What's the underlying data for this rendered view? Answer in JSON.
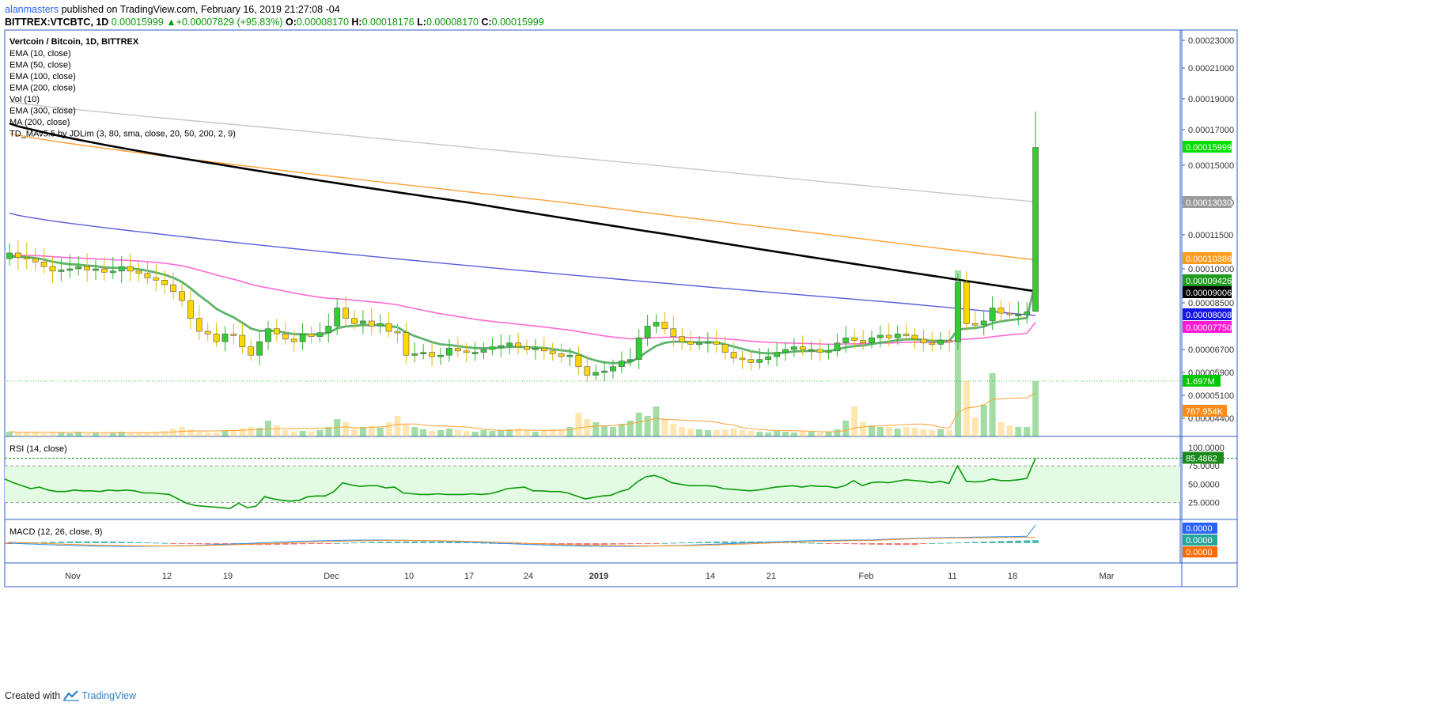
{
  "header": {
    "author": "alanmasters",
    "published": " published on TradingView.com, February 16, 2019 21:27:08 -04",
    "symbol_line": "BITTREX:VTCBTC, 1D",
    "last_price": "0.00015999",
    "change": "+0.00007829 (+95.83%)",
    "o_label": "O:",
    "o_value": "0.00008170",
    "h_label": "H:",
    "h_value": "0.00018176",
    "l_label": "L:",
    "l_value": "0.00008170",
    "c_label": "C:",
    "c_value": "0.00015999"
  },
  "footer": {
    "created_with": "Created with",
    "brand": "TradingView"
  },
  "colors": {
    "up": "#32cd32",
    "down": "#ffd700",
    "ema10": "#5fb36c",
    "ema50": "#ff6ad5",
    "ema100": "#5b5bdd",
    "ema200": "#000000",
    "ema300": "#ffa033",
    "ma200": "#c8c8c8",
    "rsi": "#0a9a0a",
    "macd": "#1e90ff",
    "signal": "#ff8c1a",
    "border": "#2f5fc8"
  },
  "chart_data": [
    {
      "type": "candlestick",
      "title": "Vertcoin / Bitcoin, 1D, BITTREX",
      "legend": [
        "EMA (10, close)",
        "EMA (50, close)",
        "EMA (100, close)",
        "EMA (200, close)",
        "Vol (10)",
        "EMA (300, close)",
        "MA (200, close)",
        "TD_MAv5.5 by JDLim (3, 80, sma, close, 20, 50, 200, 2, 9)"
      ],
      "y_ticks": [
        "0.00023000",
        "0.00021000",
        "0.00019000",
        "0.00017000",
        "0.00015000",
        "0.00013000",
        "0.00011500",
        "0.00010000",
        "0.00008500",
        "0.00006700",
        "0.00005900",
        "0.00005100",
        "0.00004400"
      ],
      "x_ticks": [
        "Nov",
        "12",
        "19",
        "Dec",
        "10",
        "17",
        "24",
        "2019",
        "14",
        "21",
        "Feb",
        "11",
        "18",
        "Mar"
      ],
      "price_labels": [
        {
          "value": "0.00015999",
          "color": "#00e000"
        },
        {
          "value": "0.00013030",
          "color": "#9c9c9c"
        },
        {
          "value": "0.00010386",
          "color": "#ff9a1a"
        },
        {
          "value": "0.00009426",
          "color": "#1f9a1f"
        },
        {
          "value": "0.00009006",
          "color": "#000000"
        },
        {
          "value": "0.00008008",
          "color": "#1515e6"
        },
        {
          "value": "0.00007750",
          "color": "#ff19d1"
        },
        {
          "value": "1.697M",
          "color": "#00c800"
        },
        {
          "value": "767.954K",
          "color": "#ff8c1a"
        }
      ],
      "candles_close": [
        0.000107,
        0.000105,
        0.0001045,
        0.000103,
        0.000101,
        9.9e-05,
        9.95e-05,
        0.0001,
        0.000101,
        9.95e-05,
        0.0001,
        9.85e-05,
        9.9e-05,
        0.000101,
        9.9e-05,
        9.8e-05,
        9.6e-05,
        9.5e-05,
        9.3e-05,
        9e-05,
        8.6e-05,
        7.9e-05,
        7.4e-05,
        7.3e-05,
        7e-05,
        7.3e-05,
        7.25e-05,
        6.8e-05,
        6.5e-05,
        7e-05,
        7.5e-05,
        7.3e-05,
        7.1e-05,
        7e-05,
        7.3e-05,
        7.2e-05,
        7.35e-05,
        7.6e-05,
        8.3e-05,
        7.9e-05,
        7.7e-05,
        7.8e-05,
        7.6e-05,
        7.7e-05,
        7.4e-05,
        7.35e-05,
        6.5e-05,
        6.55e-05,
        6.6e-05,
        6.45e-05,
        6.5e-05,
        6.75e-05,
        6.65e-05,
        6.6e-05,
        6.6e-05,
        6.7e-05,
        6.8e-05,
        6.85e-05,
        6.95e-05,
        6.8e-05,
        6.7e-05,
        6.75e-05,
        6.65e-05,
        6.55e-05,
        6.45e-05,
        6.5e-05,
        6.1e-05,
        5.8e-05,
        5.9e-05,
        5.95e-05,
        6.1e-05,
        6.3e-05,
        6.35e-05,
        7.15e-05,
        7.6e-05,
        7.75e-05,
        7.5e-05,
        7.2e-05,
        7e-05,
        6.9e-05,
        6.95e-05,
        7e-05,
        6.9e-05,
        6.6e-05,
        6.4e-05,
        6.35e-05,
        6.25e-05,
        6.35e-05,
        6.45e-05,
        6.6e-05,
        6.7e-05,
        6.8e-05,
        6.7e-05,
        6.7e-05,
        6.6e-05,
        6.65e-05,
        6.95e-05,
        7.15e-05,
        7.05e-05,
        6.95e-05,
        7.15e-05,
        7.25e-05,
        7.15e-05,
        7.3e-05,
        7.25e-05,
        7.1e-05,
        6.95e-05,
        6.9e-05,
        7.05e-05,
        7e-05,
        9.4e-05,
        7.7e-05,
        7.65e-05,
        7.8e-05,
        8.3e-05,
        8.1e-05,
        8.05e-05,
        8.05e-05,
        8.15e-05,
        0.00015999
      ],
      "volume_ma_label": "767.954K",
      "volume_last": "1.697M"
    },
    {
      "type": "line",
      "title": "RSI (14, close)",
      "y_ticks": [
        "100.0000",
        "75.0000",
        "50.0000",
        "25.0000"
      ],
      "last_label": "85.4862",
      "values": [
        57,
        52,
        48,
        44,
        46,
        42,
        40,
        40,
        42,
        41,
        41,
        40,
        42,
        41,
        42,
        41,
        38,
        38,
        37,
        36,
        30,
        24,
        21,
        20,
        19,
        18,
        17,
        24,
        18,
        20,
        33,
        30,
        28,
        27,
        28,
        33,
        34,
        34,
        40,
        52,
        49,
        47,
        48,
        48,
        45,
        46,
        38,
        37,
        36,
        36,
        37,
        36,
        36,
        36,
        37,
        36,
        37,
        40,
        44,
        45,
        46,
        41,
        41,
        40,
        40,
        38,
        34,
        30,
        32,
        34,
        35,
        40,
        43,
        53,
        60,
        62,
        58,
        52,
        50,
        48,
        48,
        48,
        47,
        44,
        43,
        42,
        41,
        42,
        44,
        46,
        47,
        48,
        46,
        48,
        47,
        47,
        45,
        48,
        55,
        48,
        52,
        53,
        52,
        54,
        56,
        55,
        54,
        52,
        54,
        51,
        75,
        54,
        53,
        54,
        57,
        55,
        55,
        56,
        58,
        85.4862
      ],
      "range": [
        0,
        100
      ]
    },
    {
      "type": "line",
      "title": "MACD (12, 26, close, 9)",
      "labels": [
        "0.0000",
        "0.0000",
        "0.0000"
      ]
    }
  ]
}
